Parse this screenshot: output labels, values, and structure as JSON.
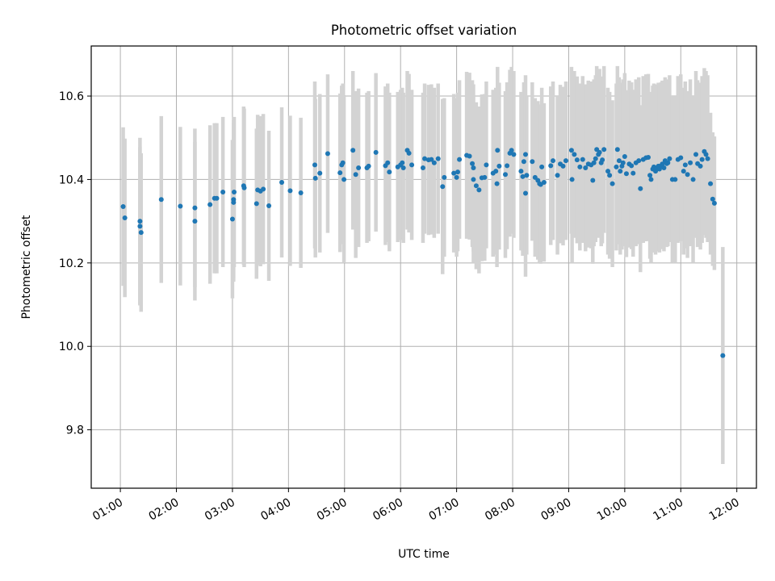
{
  "chart_data": {
    "type": "scatter",
    "title": "Photometric offset variation",
    "xlabel": "UTC time",
    "ylabel": "Photometric offset",
    "xlim": [
      0.48,
      12.35
    ],
    "ylim": [
      9.66,
      10.72
    ],
    "x_ticks": [
      {
        "v": 1,
        "label": "01:00"
      },
      {
        "v": 2,
        "label": "02:00"
      },
      {
        "v": 3,
        "label": "03:00"
      },
      {
        "v": 4,
        "label": "04:00"
      },
      {
        "v": 5,
        "label": "05:00"
      },
      {
        "v": 6,
        "label": "06:00"
      },
      {
        "v": 7,
        "label": "07:00"
      },
      {
        "v": 8,
        "label": "08:00"
      },
      {
        "v": 9,
        "label": "09:00"
      },
      {
        "v": 10,
        "label": "10:00"
      },
      {
        "v": 11,
        "label": "11:00"
      },
      {
        "v": 12,
        "label": "12:00"
      }
    ],
    "y_ticks": [
      {
        "v": 9.8,
        "label": "9.8"
      },
      {
        "v": 10.0,
        "label": "10.0"
      },
      {
        "v": 10.2,
        "label": "10.2"
      },
      {
        "v": 10.4,
        "label": "10.4"
      },
      {
        "v": 10.6,
        "label": "10.6"
      }
    ],
    "grid": true,
    "marker_color": "#1f77b4",
    "errorbar_color": "#d3d3d3",
    "points": [
      {
        "x": 1.05,
        "y": 10.335,
        "err": 0.19
      },
      {
        "x": 1.08,
        "y": 10.308,
        "err": 0.19
      },
      {
        "x": 1.35,
        "y": 10.3,
        "err": 0.2
      },
      {
        "x": 1.35,
        "y": 10.288,
        "err": 0.19
      },
      {
        "x": 1.37,
        "y": 10.273,
        "err": 0.19
      },
      {
        "x": 1.73,
        "y": 10.352,
        "err": 0.2
      },
      {
        "x": 2.07,
        "y": 10.336,
        "err": 0.19
      },
      {
        "x": 2.33,
        "y": 10.332,
        "err": 0.19
      },
      {
        "x": 2.33,
        "y": 10.3,
        "err": 0.19
      },
      {
        "x": 2.6,
        "y": 10.34,
        "err": 0.19
      },
      {
        "x": 2.68,
        "y": 10.355,
        "err": 0.18
      },
      {
        "x": 2.72,
        "y": 10.355,
        "err": 0.18
      },
      {
        "x": 2.83,
        "y": 10.37,
        "err": 0.18
      },
      {
        "x": 3.0,
        "y": 10.305,
        "err": 0.19
      },
      {
        "x": 3.02,
        "y": 10.352,
        "err": 0.19
      },
      {
        "x": 3.02,
        "y": 10.345,
        "err": 0.19
      },
      {
        "x": 3.03,
        "y": 10.37,
        "err": 0.18
      },
      {
        "x": 3.2,
        "y": 10.385,
        "err": 0.19
      },
      {
        "x": 3.21,
        "y": 10.38,
        "err": 0.19
      },
      {
        "x": 3.43,
        "y": 10.342,
        "err": 0.18
      },
      {
        "x": 3.45,
        "y": 10.375,
        "err": 0.18
      },
      {
        "x": 3.5,
        "y": 10.372,
        "err": 0.18
      },
      {
        "x": 3.55,
        "y": 10.377,
        "err": 0.18
      },
      {
        "x": 3.65,
        "y": 10.337,
        "err": 0.18
      },
      {
        "x": 3.88,
        "y": 10.393,
        "err": 0.18
      },
      {
        "x": 4.03,
        "y": 10.373,
        "err": 0.18
      },
      {
        "x": 4.22,
        "y": 10.368,
        "err": 0.18
      },
      {
        "x": 4.47,
        "y": 10.435,
        "err": 0.2
      },
      {
        "x": 4.48,
        "y": 10.403,
        "err": 0.19
      },
      {
        "x": 4.56,
        "y": 10.415,
        "err": 0.19
      },
      {
        "x": 4.7,
        "y": 10.462,
        "err": 0.19
      },
      {
        "x": 4.92,
        "y": 10.416,
        "err": 0.19
      },
      {
        "x": 4.95,
        "y": 10.435,
        "err": 0.19
      },
      {
        "x": 4.97,
        "y": 10.44,
        "err": 0.19
      },
      {
        "x": 4.99,
        "y": 10.4,
        "err": 0.2
      },
      {
        "x": 5.15,
        "y": 10.47,
        "err": 0.19
      },
      {
        "x": 5.2,
        "y": 10.412,
        "err": 0.2
      },
      {
        "x": 5.25,
        "y": 10.428,
        "err": 0.19
      },
      {
        "x": 5.4,
        "y": 10.428,
        "err": 0.18
      },
      {
        "x": 5.43,
        "y": 10.432,
        "err": 0.18
      },
      {
        "x": 5.56,
        "y": 10.465,
        "err": 0.19
      },
      {
        "x": 5.73,
        "y": 10.433,
        "err": 0.19
      },
      {
        "x": 5.77,
        "y": 10.44,
        "err": 0.19
      },
      {
        "x": 5.8,
        "y": 10.418,
        "err": 0.19
      },
      {
        "x": 5.95,
        "y": 10.43,
        "err": 0.18
      },
      {
        "x": 6.0,
        "y": 10.435,
        "err": 0.18
      },
      {
        "x": 6.03,
        "y": 10.44,
        "err": 0.18
      },
      {
        "x": 6.05,
        "y": 10.428,
        "err": 0.18
      },
      {
        "x": 6.12,
        "y": 10.47,
        "err": 0.19
      },
      {
        "x": 6.15,
        "y": 10.463,
        "err": 0.19
      },
      {
        "x": 6.2,
        "y": 10.435,
        "err": 0.18
      },
      {
        "x": 6.4,
        "y": 10.428,
        "err": 0.18
      },
      {
        "x": 6.43,
        "y": 10.45,
        "err": 0.18
      },
      {
        "x": 6.5,
        "y": 10.447,
        "err": 0.18
      },
      {
        "x": 6.55,
        "y": 10.448,
        "err": 0.18
      },
      {
        "x": 6.6,
        "y": 10.44,
        "err": 0.18
      },
      {
        "x": 6.67,
        "y": 10.45,
        "err": 0.18
      },
      {
        "x": 6.75,
        "y": 10.383,
        "err": 0.21
      },
      {
        "x": 6.78,
        "y": 10.405,
        "err": 0.19
      },
      {
        "x": 6.95,
        "y": 10.415,
        "err": 0.19
      },
      {
        "x": 7.0,
        "y": 10.405,
        "err": 0.19
      },
      {
        "x": 7.02,
        "y": 10.418,
        "err": 0.19
      },
      {
        "x": 7.05,
        "y": 10.448,
        "err": 0.19
      },
      {
        "x": 7.18,
        "y": 10.458,
        "err": 0.2
      },
      {
        "x": 7.23,
        "y": 10.456,
        "err": 0.2
      },
      {
        "x": 7.28,
        "y": 10.438,
        "err": 0.2
      },
      {
        "x": 7.3,
        "y": 10.428,
        "err": 0.2
      },
      {
        "x": 7.3,
        "y": 10.4,
        "err": 0.2
      },
      {
        "x": 7.35,
        "y": 10.385,
        "err": 0.2
      },
      {
        "x": 7.4,
        "y": 10.375,
        "err": 0.2
      },
      {
        "x": 7.45,
        "y": 10.404,
        "err": 0.2
      },
      {
        "x": 7.5,
        "y": 10.405,
        "err": 0.2
      },
      {
        "x": 7.53,
        "y": 10.435,
        "err": 0.2
      },
      {
        "x": 7.65,
        "y": 10.415,
        "err": 0.2
      },
      {
        "x": 7.7,
        "y": 10.42,
        "err": 0.2
      },
      {
        "x": 7.72,
        "y": 10.39,
        "err": 0.2
      },
      {
        "x": 7.73,
        "y": 10.47,
        "err": 0.2
      },
      {
        "x": 7.76,
        "y": 10.432,
        "err": 0.2
      },
      {
        "x": 7.87,
        "y": 10.412,
        "err": 0.2
      },
      {
        "x": 7.9,
        "y": 10.433,
        "err": 0.2
      },
      {
        "x": 7.95,
        "y": 10.463,
        "err": 0.2
      },
      {
        "x": 7.98,
        "y": 10.47,
        "err": 0.2
      },
      {
        "x": 8.02,
        "y": 10.46,
        "err": 0.2
      },
      {
        "x": 8.15,
        "y": 10.42,
        "err": 0.19
      },
      {
        "x": 8.18,
        "y": 10.407,
        "err": 0.19
      },
      {
        "x": 8.2,
        "y": 10.443,
        "err": 0.19
      },
      {
        "x": 8.23,
        "y": 10.46,
        "err": 0.19
      },
      {
        "x": 8.23,
        "y": 10.367,
        "err": 0.2
      },
      {
        "x": 8.25,
        "y": 10.41,
        "err": 0.19
      },
      {
        "x": 8.35,
        "y": 10.443,
        "err": 0.19
      },
      {
        "x": 8.4,
        "y": 10.405,
        "err": 0.19
      },
      {
        "x": 8.45,
        "y": 10.398,
        "err": 0.19
      },
      {
        "x": 8.48,
        "y": 10.39,
        "err": 0.19
      },
      {
        "x": 8.5,
        "y": 10.388,
        "err": 0.19
      },
      {
        "x": 8.52,
        "y": 10.43,
        "err": 0.19
      },
      {
        "x": 8.56,
        "y": 10.393,
        "err": 0.19
      },
      {
        "x": 8.68,
        "y": 10.433,
        "err": 0.19
      },
      {
        "x": 8.72,
        "y": 10.445,
        "err": 0.19
      },
      {
        "x": 8.8,
        "y": 10.41,
        "err": 0.19
      },
      {
        "x": 8.85,
        "y": 10.437,
        "err": 0.19
      },
      {
        "x": 8.9,
        "y": 10.432,
        "err": 0.19
      },
      {
        "x": 8.95,
        "y": 10.445,
        "err": 0.19
      },
      {
        "x": 9.05,
        "y": 10.47,
        "err": 0.2
      },
      {
        "x": 9.06,
        "y": 10.4,
        "err": 0.2
      },
      {
        "x": 9.1,
        "y": 10.46,
        "err": 0.2
      },
      {
        "x": 9.15,
        "y": 10.447,
        "err": 0.2
      },
      {
        "x": 9.2,
        "y": 10.43,
        "err": 0.2
      },
      {
        "x": 9.25,
        "y": 10.448,
        "err": 0.2
      },
      {
        "x": 9.3,
        "y": 10.428,
        "err": 0.2
      },
      {
        "x": 9.35,
        "y": 10.437,
        "err": 0.2
      },
      {
        "x": 9.4,
        "y": 10.435,
        "err": 0.2
      },
      {
        "x": 9.43,
        "y": 10.398,
        "err": 0.2
      },
      {
        "x": 9.45,
        "y": 10.44,
        "err": 0.2
      },
      {
        "x": 9.48,
        "y": 10.45,
        "err": 0.2
      },
      {
        "x": 9.5,
        "y": 10.472,
        "err": 0.2
      },
      {
        "x": 9.53,
        "y": 10.46,
        "err": 0.2
      },
      {
        "x": 9.55,
        "y": 10.465,
        "err": 0.2
      },
      {
        "x": 9.58,
        "y": 10.44,
        "err": 0.2
      },
      {
        "x": 9.6,
        "y": 10.447,
        "err": 0.2
      },
      {
        "x": 9.63,
        "y": 10.472,
        "err": 0.2
      },
      {
        "x": 9.7,
        "y": 10.42,
        "err": 0.2
      },
      {
        "x": 9.73,
        "y": 10.41,
        "err": 0.2
      },
      {
        "x": 9.78,
        "y": 10.39,
        "err": 0.2
      },
      {
        "x": 9.85,
        "y": 10.43,
        "err": 0.2
      },
      {
        "x": 9.87,
        "y": 10.472,
        "err": 0.2
      },
      {
        "x": 9.9,
        "y": 10.445,
        "err": 0.2
      },
      {
        "x": 9.92,
        "y": 10.42,
        "err": 0.2
      },
      {
        "x": 9.95,
        "y": 10.432,
        "err": 0.2
      },
      {
        "x": 9.97,
        "y": 10.44,
        "err": 0.2
      },
      {
        "x": 10.0,
        "y": 10.455,
        "err": 0.2
      },
      {
        "x": 10.03,
        "y": 10.414,
        "err": 0.2
      },
      {
        "x": 10.08,
        "y": 10.437,
        "err": 0.2
      },
      {
        "x": 10.12,
        "y": 10.433,
        "err": 0.2
      },
      {
        "x": 10.15,
        "y": 10.415,
        "err": 0.2
      },
      {
        "x": 10.2,
        "y": 10.44,
        "err": 0.2
      },
      {
        "x": 10.25,
        "y": 10.445,
        "err": 0.2
      },
      {
        "x": 10.28,
        "y": 10.378,
        "err": 0.2
      },
      {
        "x": 10.33,
        "y": 10.448,
        "err": 0.2
      },
      {
        "x": 10.38,
        "y": 10.452,
        "err": 0.2
      },
      {
        "x": 10.42,
        "y": 10.453,
        "err": 0.2
      },
      {
        "x": 10.45,
        "y": 10.41,
        "err": 0.2
      },
      {
        "x": 10.47,
        "y": 10.4,
        "err": 0.2
      },
      {
        "x": 10.5,
        "y": 10.425,
        "err": 0.2
      },
      {
        "x": 10.52,
        "y": 10.43,
        "err": 0.2
      },
      {
        "x": 10.55,
        "y": 10.42,
        "err": 0.2
      },
      {
        "x": 10.57,
        "y": 10.428,
        "err": 0.2
      },
      {
        "x": 10.6,
        "y": 10.432,
        "err": 0.2
      },
      {
        "x": 10.62,
        "y": 10.425,
        "err": 0.2
      },
      {
        "x": 10.65,
        "y": 10.433,
        "err": 0.2
      },
      {
        "x": 10.67,
        "y": 10.437,
        "err": 0.2
      },
      {
        "x": 10.7,
        "y": 10.428,
        "err": 0.2
      },
      {
        "x": 10.72,
        "y": 10.445,
        "err": 0.2
      },
      {
        "x": 10.75,
        "y": 10.438,
        "err": 0.2
      },
      {
        "x": 10.77,
        "y": 10.44,
        "err": 0.2
      },
      {
        "x": 10.8,
        "y": 10.45,
        "err": 0.2
      },
      {
        "x": 10.85,
        "y": 10.4,
        "err": 0.2
      },
      {
        "x": 10.9,
        "y": 10.4,
        "err": 0.2
      },
      {
        "x": 10.95,
        "y": 10.448,
        "err": 0.2
      },
      {
        "x": 11.0,
        "y": 10.452,
        "err": 0.2
      },
      {
        "x": 11.05,
        "y": 10.42,
        "err": 0.2
      },
      {
        "x": 11.08,
        "y": 10.435,
        "err": 0.2
      },
      {
        "x": 11.12,
        "y": 10.412,
        "err": 0.2
      },
      {
        "x": 11.17,
        "y": 10.44,
        "err": 0.2
      },
      {
        "x": 11.22,
        "y": 10.4,
        "err": 0.2
      },
      {
        "x": 11.27,
        "y": 10.46,
        "err": 0.2
      },
      {
        "x": 11.3,
        "y": 10.438,
        "err": 0.2
      },
      {
        "x": 11.35,
        "y": 10.432,
        "err": 0.2
      },
      {
        "x": 11.38,
        "y": 10.448,
        "err": 0.2
      },
      {
        "x": 11.42,
        "y": 10.467,
        "err": 0.2
      },
      {
        "x": 11.45,
        "y": 10.46,
        "err": 0.2
      },
      {
        "x": 11.48,
        "y": 10.45,
        "err": 0.2
      },
      {
        "x": 11.53,
        "y": 10.39,
        "err": 0.17
      },
      {
        "x": 11.57,
        "y": 10.353,
        "err": 0.16
      },
      {
        "x": 11.6,
        "y": 10.343,
        "err": 0.16
      },
      {
        "x": 11.75,
        "y": 9.978,
        "err": 0.26
      }
    ]
  }
}
